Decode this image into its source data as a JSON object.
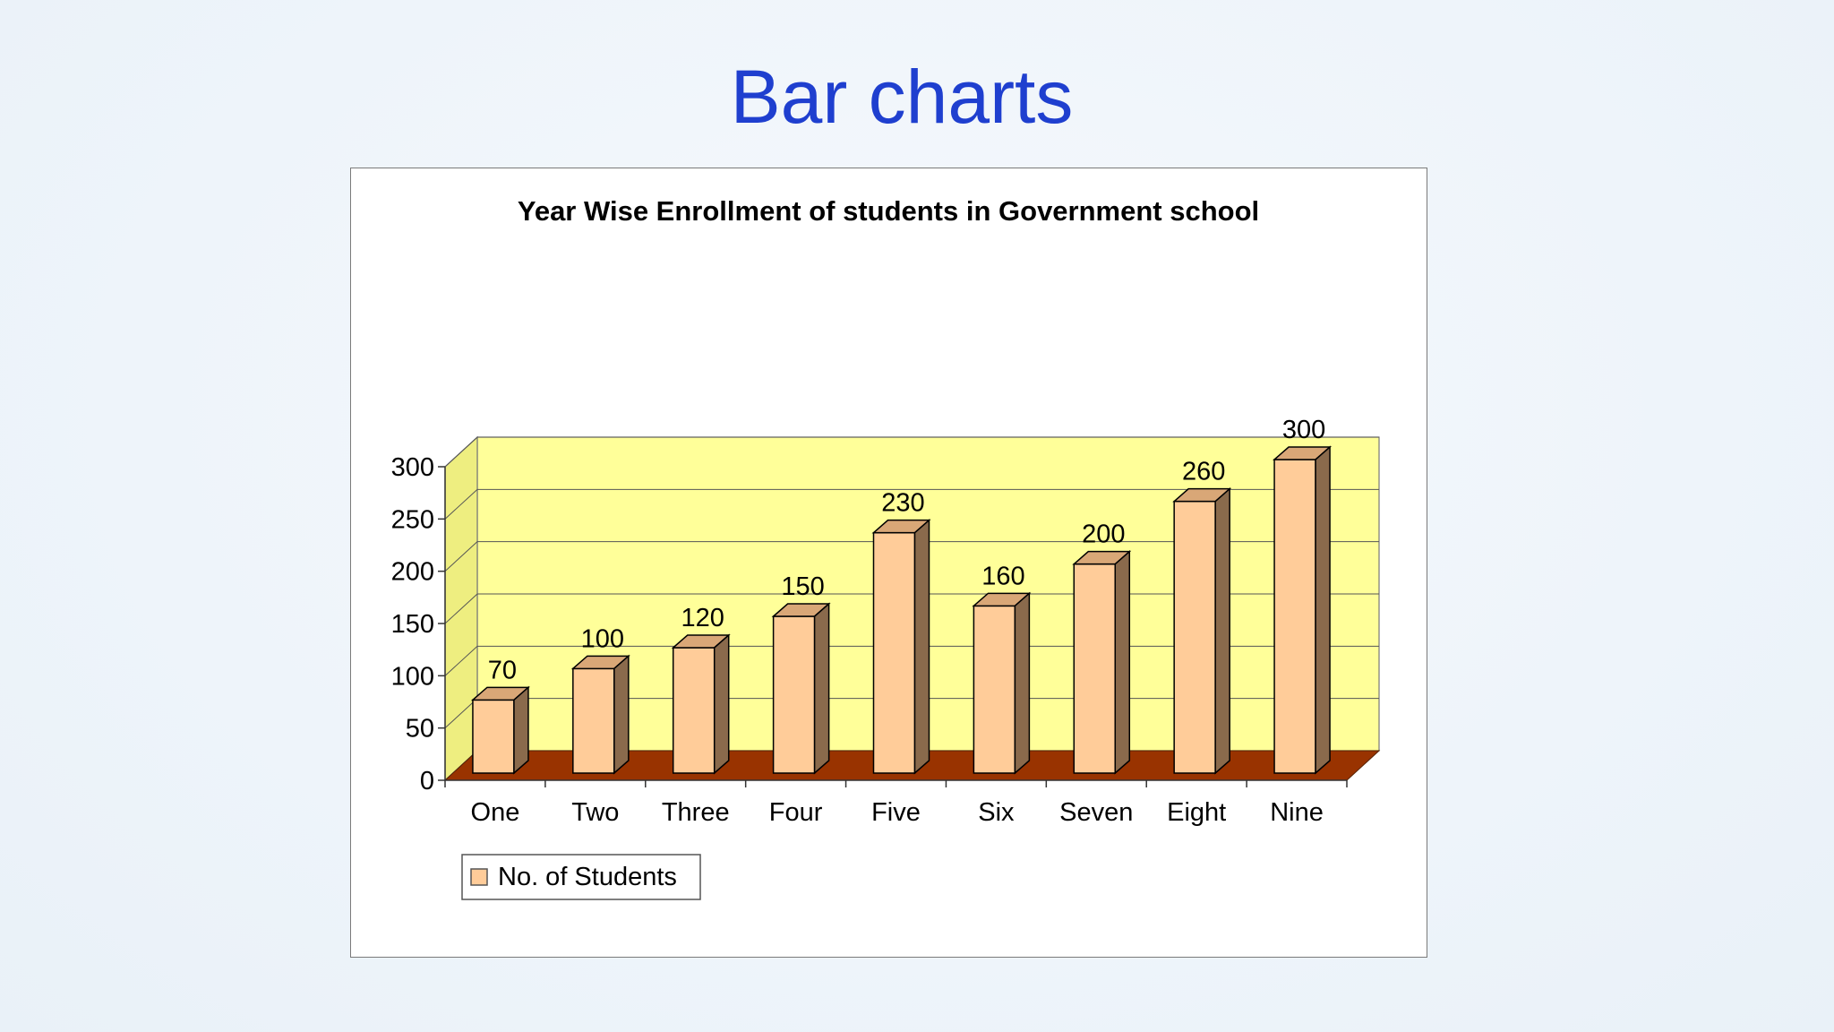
{
  "slide": {
    "title": "Bar charts"
  },
  "colors": {
    "title": "#1f3fcf",
    "plot_back": "#ffff99",
    "plot_side": "#eeee80",
    "floor": "#993300",
    "bar_front": "#ffcc99",
    "bar_top": "#d9a777",
    "bar_side": "#8a6a4c",
    "legend_swatch": "#ffcc99"
  },
  "chart_data": {
    "type": "bar",
    "title": "Year Wise Enrollment of students in Government school",
    "categories": [
      "One",
      "Two",
      "Three",
      "Four",
      "Five",
      "Six",
      "Seven",
      "Eight",
      "Nine"
    ],
    "series": [
      {
        "name": "No. of Students",
        "values": [
          70,
          100,
          120,
          150,
          230,
          160,
          200,
          260,
          300
        ]
      }
    ],
    "ylim": [
      0,
      300
    ],
    "yticks": [
      0,
      50,
      100,
      150,
      200,
      250,
      300
    ],
    "grid": true,
    "style": "3d-column",
    "data_labels": true,
    "legend_position": "bottom-left",
    "xlabel": "",
    "ylabel": ""
  }
}
